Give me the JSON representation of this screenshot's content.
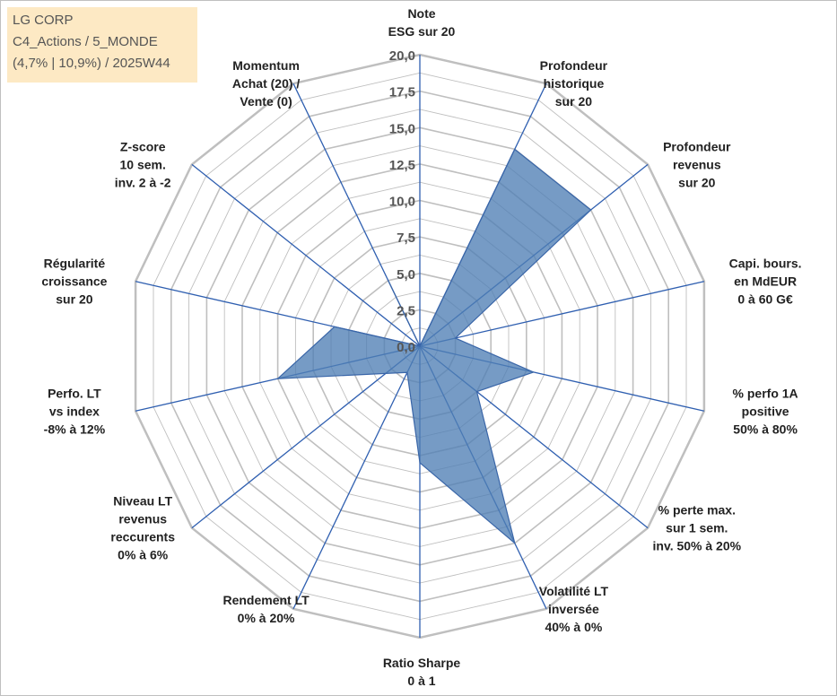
{
  "header": {
    "line1": "LG CORP",
    "line2": "C4_Actions / 5_MONDE",
    "line3": "(4,7% | 10,9%) / 2025W44"
  },
  "chart_data": {
    "type": "radar",
    "title": "LG CORP",
    "rlim": [
      0,
      20
    ],
    "ticks": [
      "0,0",
      "2,5",
      "5,0",
      "7,5",
      "10,0",
      "12,5",
      "15,0",
      "17,5",
      "20,0"
    ],
    "grid": true,
    "colors": {
      "fill": "#4f7fb5",
      "stroke": "#3a66a8",
      "axis": "#2f5fb0",
      "grid": "#bfbfbf"
    },
    "axes": [
      {
        "label": [
          "Note",
          "ESG sur 20"
        ],
        "value": 0
      },
      {
        "label": [
          "Profondeur",
          "historique",
          "sur 20"
        ],
        "value": 15
      },
      {
        "label": [
          "Profondeur",
          "revenus",
          "sur 20"
        ],
        "value": 15
      },
      {
        "label": [
          "Capi. bours.",
          "en MdEUR",
          "0 à 60 G€"
        ],
        "value": 2.5
      },
      {
        "label": [
          "% perfo 1A",
          "positive",
          "50% à 80%"
        ],
        "value": 8
      },
      {
        "label": [
          "% perte max.",
          "sur 1 sem.",
          "inv. 50% à 20%"
        ],
        "value": 5
      },
      {
        "label": [
          "Volatilité LT",
          "inversée",
          "40% à 0%"
        ],
        "value": 15
      },
      {
        "label": [
          "Ratio Sharpe",
          "0 à 1"
        ],
        "value": 8
      },
      {
        "label": [
          "Rendement LT",
          "0% à 20%"
        ],
        "value": 2
      },
      {
        "label": [
          "Niveau LT",
          "revenus",
          "reccurents",
          "0% à 6%"
        ],
        "value": 3
      },
      {
        "label": [
          "Perfo. LT",
          "vs index",
          "-8% à 12%"
        ],
        "value": 10
      },
      {
        "label": [
          "Régularité",
          "croissance",
          "sur 20"
        ],
        "value": 6
      },
      {
        "label": [
          "Z-score",
          "10 sem.",
          "inv. 2 à -2"
        ],
        "value": 0
      },
      {
        "label": [
          "Momentum",
          "Achat (20) /",
          "Vente (0)"
        ],
        "value": 5
      }
    ]
  }
}
